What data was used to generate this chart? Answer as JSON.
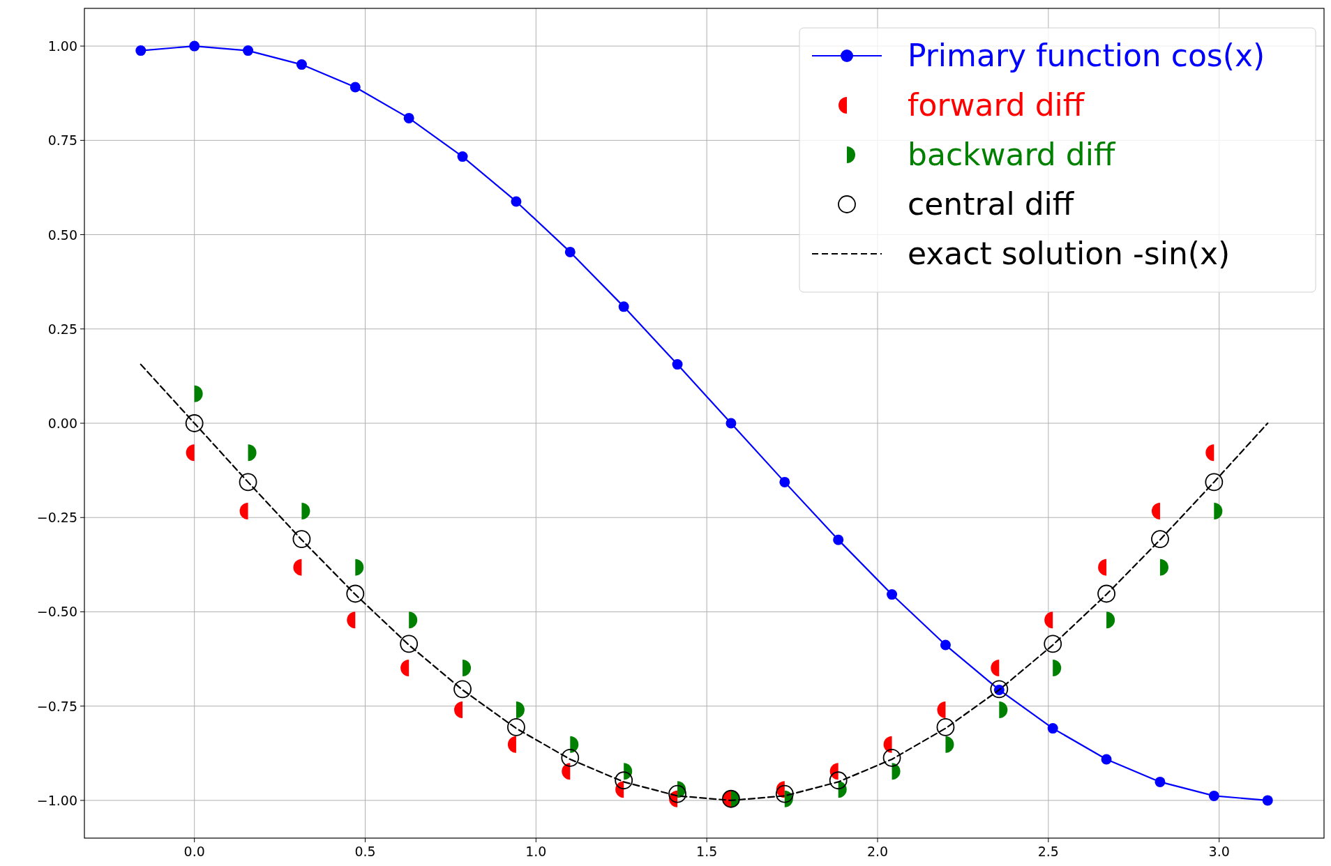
{
  "chart_data": {
    "type": "line",
    "xlim": [
      -0.322,
      3.307
    ],
    "ylim": [
      -1.1,
      1.1
    ],
    "xticks": [
      {
        "value": 0,
        "label": "0.0"
      },
      {
        "value": 0.5,
        "label": "0.5"
      },
      {
        "value": 1,
        "label": "1.0"
      },
      {
        "value": 1.5,
        "label": "1.5"
      },
      {
        "value": 2,
        "label": "2.0"
      },
      {
        "value": 2.5,
        "label": "2.5"
      },
      {
        "value": 3,
        "label": "3.0"
      }
    ],
    "yticks": [
      {
        "value": -1,
        "label": "−1.00"
      },
      {
        "value": -0.75,
        "label": "−0.75"
      },
      {
        "value": -0.5,
        "label": "−0.50"
      },
      {
        "value": -0.25,
        "label": "−0.25"
      },
      {
        "value": 0,
        "label": "0.00"
      },
      {
        "value": 0.25,
        "label": "0.25"
      },
      {
        "value": 0.5,
        "label": "0.50"
      },
      {
        "value": 0.75,
        "label": "0.75"
      },
      {
        "value": 1,
        "label": "1.00"
      }
    ],
    "grid": true,
    "legend": "top right",
    "series": [
      {
        "name": "Primary function cos(x)",
        "color": "#0000ff",
        "marker": "circle",
        "line_style": "solid",
        "x": [
          -0.157,
          0,
          0.157,
          0.314,
          0.471,
          0.628,
          0.785,
          0.942,
          1.1,
          1.257,
          1.414,
          1.571,
          1.728,
          1.885,
          2.042,
          2.199,
          2.356,
          2.513,
          2.67,
          2.827,
          2.985,
          3.142
        ],
        "values": [
          0.988,
          1,
          0.988,
          0.951,
          0.891,
          0.809,
          0.707,
          0.588,
          0.454,
          0.309,
          0.156,
          0,
          -0.156,
          -0.309,
          -0.454,
          -0.588,
          -0.707,
          -0.809,
          -0.891,
          -0.951,
          -0.988,
          -1
        ]
      },
      {
        "name": "forward diff",
        "type": "scatter",
        "color": "#ff0000",
        "marker": "circle",
        "x": [
          0,
          0.157,
          0.314,
          0.471,
          0.628,
          0.785,
          0.942,
          1.1,
          1.257,
          1.414,
          1.571,
          1.728,
          1.885,
          2.042,
          2.199,
          2.356,
          2.513,
          2.67,
          2.827,
          2.985
        ],
        "values": [
          -0.078,
          -0.233,
          -0.382,
          -0.522,
          -0.649,
          -0.76,
          -0.852,
          -0.923,
          -0.971,
          -0.996,
          -0.996,
          -0.971,
          -0.923,
          -0.852,
          -0.76,
          -0.649,
          -0.522,
          -0.382,
          -0.233,
          -0.078
        ]
      },
      {
        "name": "backward diff",
        "type": "scatter",
        "color": "#008000",
        "marker": "circle",
        "x": [
          0,
          0.157,
          0.314,
          0.471,
          0.628,
          0.785,
          0.942,
          1.1,
          1.257,
          1.414,
          1.571,
          1.728,
          1.885,
          2.042,
          2.199,
          2.356,
          2.513,
          2.67,
          2.827,
          2.985
        ],
        "values": [
          0.078,
          -0.078,
          -0.233,
          -0.382,
          -0.522,
          -0.649,
          -0.76,
          -0.852,
          -0.923,
          -0.971,
          -0.996,
          -0.996,
          -0.971,
          -0.923,
          -0.852,
          -0.76,
          -0.649,
          -0.522,
          -0.382,
          -0.233
        ]
      },
      {
        "name": "central diff",
        "type": "scatter",
        "color": "#000000",
        "marker": "circle",
        "x": [
          0,
          0.157,
          0.314,
          0.471,
          0.628,
          0.785,
          0.942,
          1.1,
          1.257,
          1.414,
          1.571,
          1.728,
          1.885,
          2.042,
          2.199,
          2.356,
          2.513,
          2.67,
          2.827,
          2.985
        ],
        "values": [
          0,
          -0.156,
          -0.307,
          -0.452,
          -0.585,
          -0.705,
          -0.806,
          -0.887,
          -0.947,
          -0.983,
          -0.996,
          -0.983,
          -0.947,
          -0.887,
          -0.806,
          -0.705,
          -0.585,
          -0.452,
          -0.307,
          -0.156
        ]
      },
      {
        "name": "exact solution -sin(x)",
        "color": "#000000",
        "marker": "none",
        "line_style": "dashed",
        "x": [
          -0.157,
          0,
          0.157,
          0.314,
          0.471,
          0.628,
          0.785,
          0.942,
          1.1,
          1.257,
          1.414,
          1.571,
          1.728,
          1.885,
          2.042,
          2.199,
          2.356,
          2.513,
          2.67,
          2.827,
          2.985,
          3.142
        ],
        "values": [
          0.156,
          0,
          -0.156,
          -0.309,
          -0.454,
          -0.588,
          -0.707,
          -0.809,
          -0.891,
          -0.951,
          -0.988,
          -1,
          -0.988,
          -0.951,
          -0.891,
          -0.809,
          -0.707,
          -0.588,
          -0.454,
          -0.309,
          -0.156,
          0
        ]
      }
    ]
  }
}
